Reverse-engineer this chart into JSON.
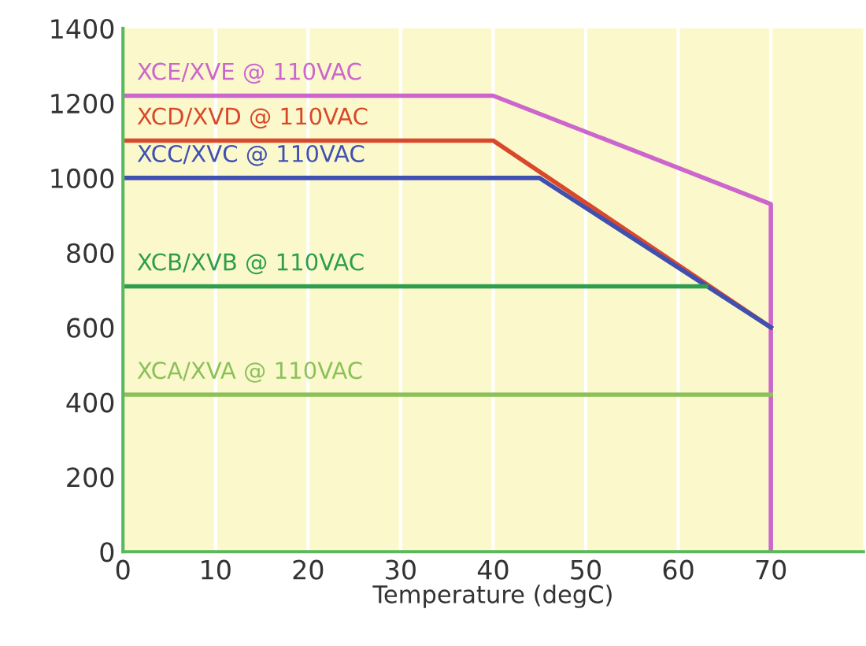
{
  "chart_data": {
    "type": "line",
    "xlabel": "Temperature (degC)",
    "xlim": [
      0,
      80
    ],
    "ylim": [
      0,
      1400
    ],
    "xticks": [
      0,
      10,
      20,
      30,
      40,
      50,
      60,
      70
    ],
    "yticks": [
      0,
      200,
      400,
      600,
      800,
      1000,
      1200,
      1400
    ],
    "grid": "x",
    "legend": false,
    "marker": "none",
    "line_style": "solid",
    "series": [
      {
        "name": "XCE/XVE @ 110VAC",
        "color": "#cc66cc",
        "x": [
          0,
          40,
          70,
          70
        ],
        "values": [
          1220,
          1220,
          930,
          0
        ]
      },
      {
        "name": "XCD/XVD @ 110VAC",
        "color": "#d9482b",
        "x": [
          0,
          40,
          70
        ],
        "values": [
          1100,
          1100,
          600
        ]
      },
      {
        "name": "XCC/XVC @ 110VAC",
        "color": "#4050b0",
        "x": [
          0,
          45,
          70
        ],
        "values": [
          1000,
          1000,
          600
        ]
      },
      {
        "name": "XCB/XVB @ 110VAC",
        "color": "#2e9e4e",
        "x": [
          0,
          63
        ],
        "values": [
          710,
          710
        ]
      },
      {
        "name": "XCA/XVA @ 110VAC",
        "color": "#8cc05a",
        "x": [
          0,
          70
        ],
        "values": [
          420,
          420
        ]
      }
    ]
  }
}
